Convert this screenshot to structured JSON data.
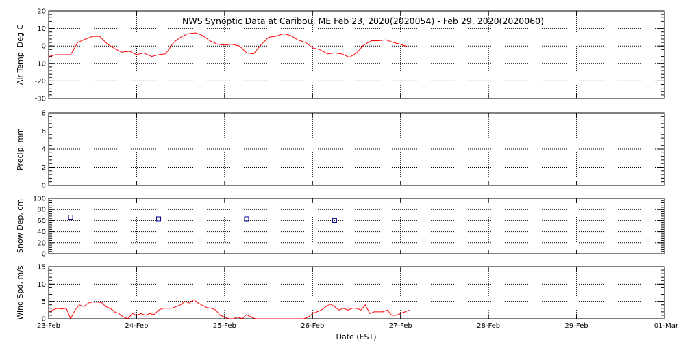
{
  "title": "NWS Synoptic Data at Caribou, ME   Feb 23, 2020(2020054) - Feb 29, 2020(2020060)",
  "xlabel": "Date (EST)",
  "colors": {
    "line": "#ff0000",
    "marker": "#00008b",
    "axes": "#000000",
    "grid": "#000000"
  },
  "chart_data": [
    {
      "type": "line",
      "panel": "air-temp",
      "ylabel": "Air Temp, Deg C",
      "ylim": [
        -30,
        20
      ],
      "yticks": [
        20,
        10,
        0,
        -10,
        -20,
        -30
      ],
      "xlim": [
        0,
        6
      ],
      "grid": true,
      "series": [
        {
          "x": [
            0,
            0.08,
            0.17,
            0.25,
            0.33,
            0.42,
            0.5,
            0.58,
            0.67,
            0.75,
            0.83,
            0.92,
            1.0,
            1.08,
            1.17,
            1.25,
            1.33,
            1.42,
            1.5,
            1.58,
            1.67,
            1.75,
            1.83,
            1.92,
            2.0,
            2.08,
            2.17,
            2.25,
            2.33,
            2.42,
            2.5,
            2.58,
            2.67,
            2.75,
            2.83,
            2.92,
            3.0,
            3.08,
            3.17,
            3.25,
            3.33,
            3.42,
            3.5,
            3.58,
            3.67,
            3.75,
            3.83,
            3.92,
            4.0,
            4.08
          ],
          "y": [
            -6,
            -5,
            -5,
            -5,
            2,
            4,
            5.5,
            5.5,
            1,
            -1.5,
            -3.5,
            -3,
            -5,
            -4,
            -6,
            -5,
            -4.5,
            2,
            5,
            7,
            7.5,
            6,
            3,
            1,
            0.5,
            1,
            0,
            -4,
            -4.5,
            1,
            5,
            5.5,
            7,
            6,
            3.5,
            2,
            -1,
            -2,
            -4.5,
            -4,
            -4.5,
            -6.5,
            -4,
            0.5,
            3,
            3,
            3.5,
            2,
            1,
            -0.5
          ]
        }
      ]
    },
    {
      "type": "line",
      "panel": "precip",
      "ylabel": "Precip, mm",
      "ylim": [
        0,
        8
      ],
      "yticks": [
        8,
        6,
        4,
        2,
        0
      ],
      "xlim": [
        0,
        6
      ],
      "grid": true,
      "series": []
    },
    {
      "type": "scatter",
      "panel": "snow-depth",
      "ylabel": "Snow Dep, cm",
      "ylim": [
        0,
        100
      ],
      "yticks": [
        100,
        80,
        60,
        40,
        20,
        0
      ],
      "xlim": [
        0,
        6
      ],
      "grid": true,
      "series": [
        {
          "x": [
            0.25,
            1.25,
            2.25,
            3.25
          ],
          "y": [
            66,
            63,
            63,
            60
          ]
        }
      ]
    },
    {
      "type": "line",
      "panel": "wind-speed",
      "ylabel": "Wind Spd, m/s",
      "ylim": [
        0,
        15
      ],
      "yticks": [
        15,
        10,
        5,
        0
      ],
      "xlim": [
        0,
        6
      ],
      "grid": true,
      "series": [
        {
          "x": [
            0,
            0.05,
            0.1,
            0.15,
            0.2,
            0.25,
            0.3,
            0.35,
            0.4,
            0.45,
            0.5,
            0.55,
            0.6,
            0.65,
            0.7,
            0.75,
            0.8,
            0.85,
            0.9,
            0.95,
            1.0,
            1.05,
            1.1,
            1.15,
            1.2,
            1.25,
            1.3,
            1.35,
            1.4,
            1.45,
            1.5,
            1.55,
            1.6,
            1.65,
            1.7,
            1.75,
            1.8,
            1.85,
            1.9,
            1.95,
            2.0,
            2.05,
            2.1,
            2.15,
            2.2,
            2.25,
            2.3,
            2.35,
            2.4,
            2.45,
            2.5,
            2.55,
            2.6,
            2.65,
            2.7,
            2.75,
            2.8,
            2.85,
            2.9,
            2.95,
            3.0,
            3.05,
            3.1,
            3.15,
            3.2,
            3.25,
            3.3,
            3.35,
            3.4,
            3.45,
            3.5,
            3.55,
            3.6,
            3.65,
            3.7,
            3.75,
            3.8,
            3.85,
            3.9,
            3.95,
            4.0,
            4.05,
            4.1
          ],
          "y": [
            2,
            2.5,
            3,
            2.8,
            3,
            0,
            2.5,
            4,
            3.5,
            4.5,
            4.8,
            4.8,
            4.7,
            3.5,
            3,
            2,
            1.5,
            0.5,
            0,
            1.5,
            1,
            1.5,
            1,
            1.5,
            1.2,
            2.5,
            3,
            3,
            3,
            3.5,
            4,
            5,
            4.5,
            5.5,
            4.5,
            3.8,
            3.2,
            3,
            2.5,
            1,
            0.5,
            0,
            0,
            0.5,
            0,
            1.2,
            0.5,
            0,
            0,
            0,
            0,
            0,
            0,
            0,
            0,
            0,
            0,
            0,
            0,
            0.5,
            1.5,
            2,
            2.5,
            3.5,
            4.2,
            3.5,
            2.5,
            3,
            2.5,
            3,
            3,
            2.5,
            4,
            1.5,
            2,
            2,
            2,
            2.5,
            1,
            1,
            1.5,
            2,
            2.5
          ]
        }
      ]
    }
  ],
  "xaxis": {
    "ticks": [
      {
        "x": 0,
        "label": "23-Feb"
      },
      {
        "x": 1,
        "label": "24-Feb"
      },
      {
        "x": 2,
        "label": "25-Feb"
      },
      {
        "x": 3,
        "label": "26-Feb"
      },
      {
        "x": 4,
        "label": "27-Feb"
      },
      {
        "x": 5,
        "label": "28-Feb"
      },
      {
        "x": 6,
        "label": "29-Feb"
      },
      {
        "x": 7,
        "label": "01-Mar"
      }
    ],
    "range": [
      0,
      7
    ]
  }
}
